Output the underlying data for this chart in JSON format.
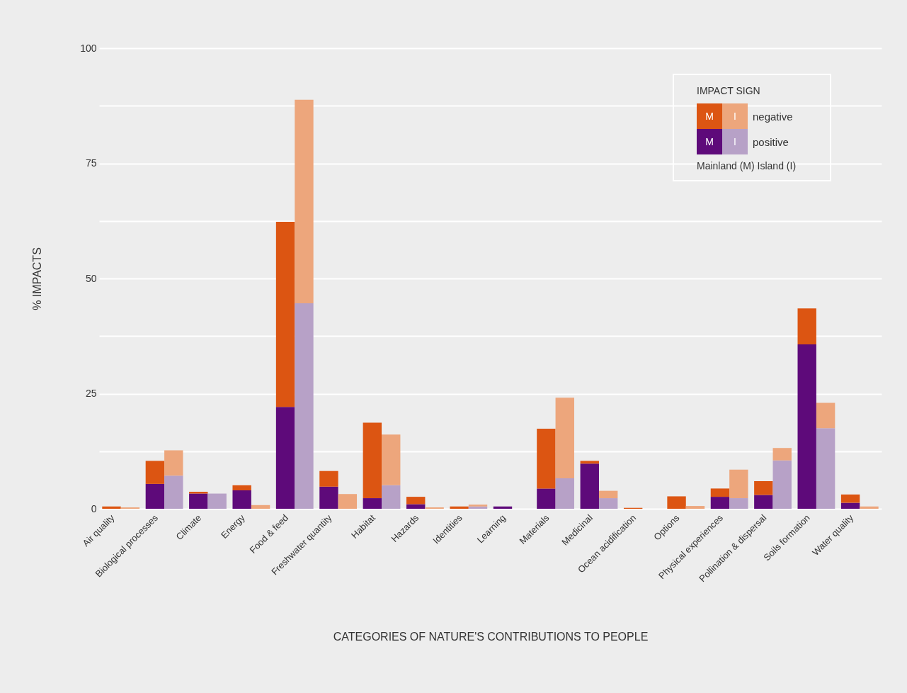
{
  "chart_data": {
    "type": "bar",
    "stacked": true,
    "xlabel": "CATEGORIES OF NATURE'S CONTRIBUTIONS TO PEOPLE",
    "ylabel": "% IMPACTS",
    "legend_title": "IMPACT SIGN",
    "legend": "top right",
    "grid": "y",
    "categories": [
      "Air quality",
      null,
      "Biological processes",
      null,
      "Climate",
      null,
      "Energy",
      null,
      "Food & feed",
      null,
      "Freshwater quantity",
      null,
      "Habitat",
      null,
      "Hazards",
      null,
      "Identities",
      null,
      "Learning",
      null,
      "Materials",
      null,
      "Medicinal",
      null,
      "Ocean acidification",
      null,
      "Options",
      null,
      "Physical experiences",
      null,
      "Pollination & dispersal",
      null,
      "Soils formation",
      null,
      "Water quality",
      null
    ],
    "ylim": [
      0,
      100
    ],
    "yticks": [
      0,
      {
        "value": 12.5,
        "label": null
      },
      25,
      {
        "value": 37.5,
        "label": null
      },
      50,
      {
        "value": 62.5,
        "label": null
      },
      75,
      {
        "value": 87.5,
        "label": null
      },
      100
    ],
    "series": [
      {
        "name": "positive",
        "colors": [
          "#5e0a7a",
          "#b7a1c7",
          "#5e0a7a",
          "#b7a1c7",
          "#5e0a7a",
          "#b7a1c7",
          "#5e0a7a",
          "#b7a1c7",
          "#5e0a7a",
          "#b7a1c7",
          "#5e0a7a",
          "#b7a1c7",
          "#5e0a7a",
          "#b7a1c7",
          "#5e0a7a",
          "#b7a1c7",
          "#5e0a7a",
          "#b7a1c7",
          "#5e0a7a",
          "#b7a1c7",
          "#5e0a7a",
          "#b7a1c7",
          "#5e0a7a",
          "#b7a1c7",
          "#5e0a7a",
          "#b7a1c7",
          "#5e0a7a",
          "#b7a1c7",
          "#5e0a7a",
          "#b7a1c7",
          "#5e0a7a",
          "#b7a1c7",
          "#5e0a7a",
          "#b7a1c7",
          "#5e0a7a",
          "#b7a1c7"
        ],
        "values": [
          0,
          0,
          5.4,
          7.2,
          3.3,
          3.3,
          4.0,
          0,
          22.1,
          44.6,
          4.8,
          0,
          2.3,
          5.1,
          1.0,
          0,
          0,
          0.5,
          0.5,
          0,
          4.4,
          6.6,
          9.8,
          2.3,
          0,
          0,
          0,
          0,
          2.6,
          2.3,
          3.0,
          10.5,
          35.7,
          17.5,
          1.3,
          0
        ]
      },
      {
        "name": "negative",
        "colors": [
          "#dc5512",
          "#eda67c",
          "#dc5512",
          "#eda67c",
          "#dc5512",
          "#eda67c",
          "#dc5512",
          "#eda67c",
          "#dc5512",
          "#eda67c",
          "#dc5512",
          "#eda67c",
          "#dc5512",
          "#eda67c",
          "#dc5512",
          "#eda67c",
          "#dc5512",
          "#eda67c",
          "#dc5512",
          "#eda67c",
          "#dc5512",
          "#eda67c",
          "#dc5512",
          "#eda67c",
          "#dc5512",
          "#eda67c",
          "#dc5512",
          "#eda67c",
          "#dc5512",
          "#eda67c",
          "#dc5512",
          "#eda67c",
          "#dc5512",
          "#eda67c",
          "#dc5512",
          "#eda67c"
        ],
        "values": [
          0.5,
          0.3,
          5.0,
          5.5,
          0.4,
          0,
          1.1,
          0.8,
          40.2,
          44.2,
          3.4,
          3.2,
          16.4,
          11.0,
          1.6,
          0.3,
          0.5,
          0.4,
          0,
          0,
          13.0,
          17.5,
          0.6,
          1.6,
          0.2,
          0,
          2.7,
          0.6,
          1.8,
          6.2,
          3.0,
          2.7,
          7.8,
          5.5,
          1.8,
          0.5
        ]
      }
    ],
    "annotations": [
      "M",
      "I",
      "Mainland (M) Island (I)"
    ]
  }
}
